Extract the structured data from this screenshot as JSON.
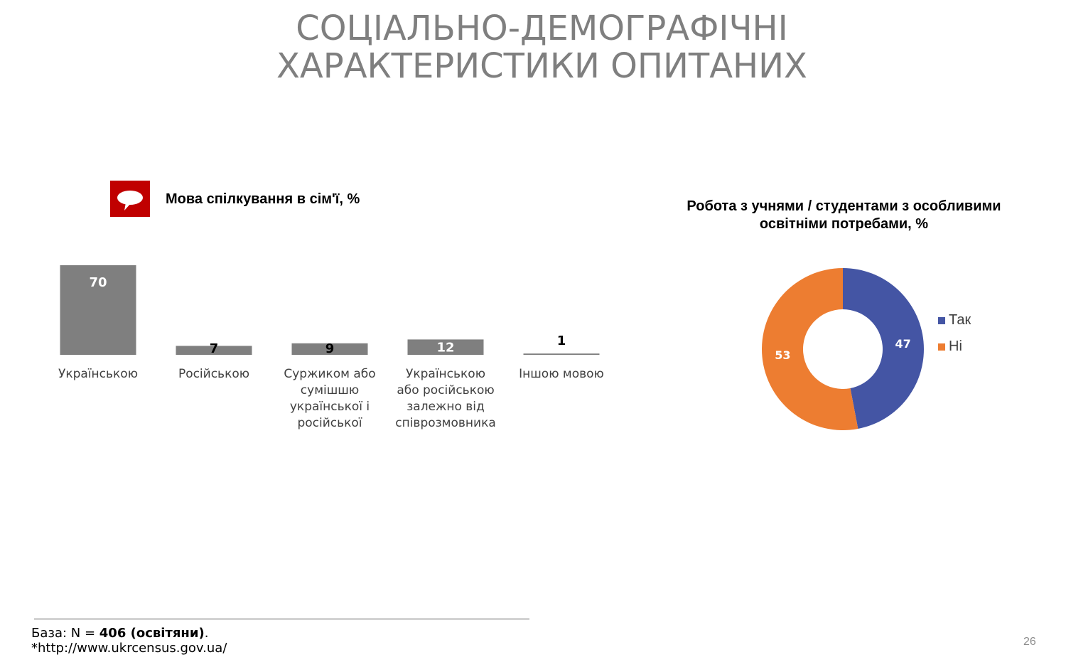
{
  "slide": {
    "title_line1": "СОЦІАЛЬНО-ДЕМОГРАФІЧНІ",
    "title_line2": "ХАРАКТЕРИСТИКИ ОПИТАНИХ",
    "page_number": "26"
  },
  "icon": {
    "name": "speech-bubble-icon",
    "color": "#c00000"
  },
  "footer": {
    "base_prefix": "База: N = ",
    "base_bold": "406 (освітяни)",
    "base_suffix": ".",
    "source": "*http://www.ukrcensus.gov.ua/"
  },
  "chart_data": [
    {
      "type": "bar",
      "title": "Мова спілкування в сім'ї, %",
      "categories": [
        [
          "Українською"
        ],
        [
          "Російською"
        ],
        [
          "Суржиком або",
          "сумішшю",
          "української і",
          "російської"
        ],
        [
          "Українською",
          "або російською",
          "залежно від",
          "співрозмовника"
        ],
        [
          "Іншою мовою"
        ]
      ],
      "values": [
        70,
        7,
        9,
        12,
        1
      ],
      "color": "#7f7f7f",
      "ylim": [
        0,
        70
      ]
    },
    {
      "type": "pie",
      "title": "Робота з учнями / студентами з особливими освітніми потребами, %",
      "labels": [
        "Так",
        "Ні"
      ],
      "values": [
        47,
        53
      ],
      "colors": [
        "#4455a4",
        "#ed7d31"
      ],
      "legend": "right"
    }
  ]
}
